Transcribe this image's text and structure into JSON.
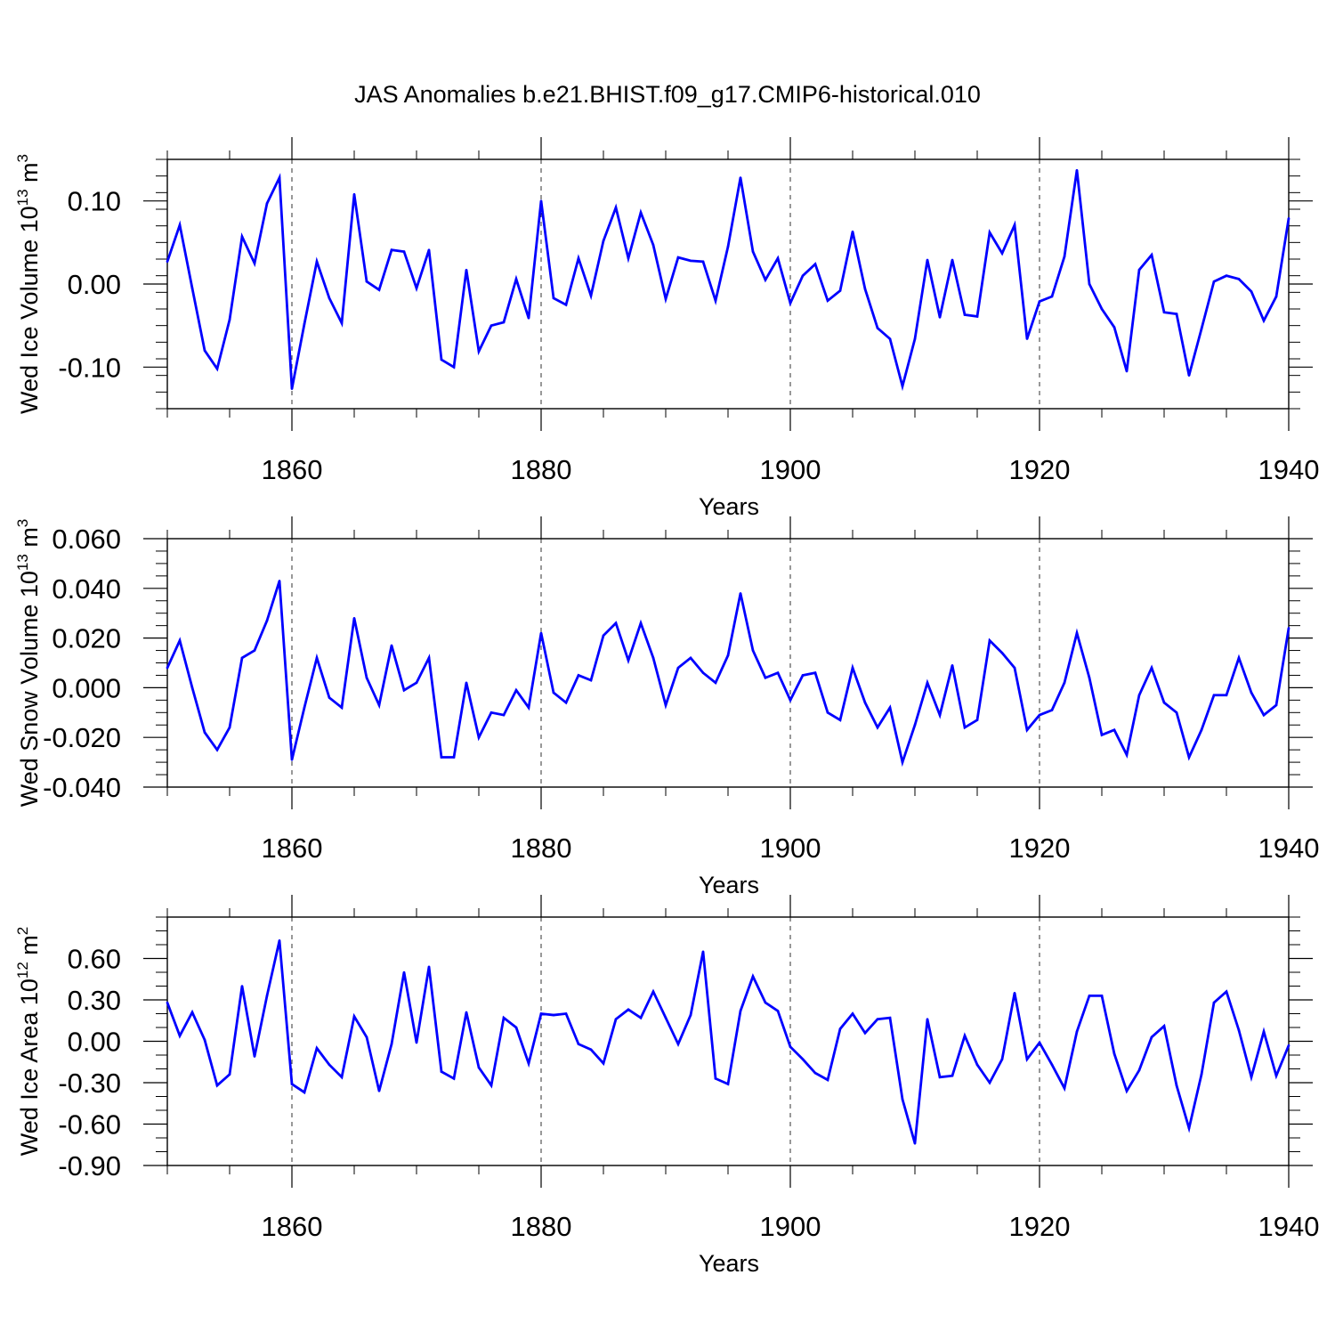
{
  "title": "JAS Anomalies b.e21.BHIST.f09_g17.CMIP6-historical.010",
  "line_color": "#0000ff",
  "chart_data": [
    {
      "type": "line",
      "ylabel": "Wed Ice Volume 10",
      "ylabel_sup": "13",
      "ylabel_unit": " m",
      "ylabel_unit_sup": "3",
      "xlabel": "Years",
      "xlim": [
        1850,
        1940
      ],
      "ylim": [
        -0.15,
        0.15
      ],
      "x_ticks": [
        1860,
        1880,
        1900,
        1920,
        1940
      ],
      "x_tick_labels": [
        "1860",
        "1880",
        "1900",
        "1920",
        "1940"
      ],
      "y_ticks": [
        -0.1,
        0.0,
        0.1
      ],
      "y_tick_labels": [
        "-0.10",
        "0.00",
        "0.10"
      ],
      "y_minor_step": 0.02,
      "x_start": 1850,
      "values": [
        0.027,
        0.071,
        -0.005,
        -0.08,
        -0.102,
        -0.043,
        0.057,
        0.025,
        0.097,
        0.128,
        -0.126,
        -0.048,
        0.027,
        -0.017,
        -0.047,
        0.108,
        0.003,
        -0.007,
        0.041,
        0.039,
        -0.005,
        0.041,
        -0.091,
        -0.1,
        0.017,
        -0.081,
        -0.05,
        -0.046,
        0.006,
        -0.041,
        0.1,
        -0.017,
        -0.025,
        0.031,
        -0.014,
        0.052,
        0.092,
        0.031,
        0.086,
        0.047,
        -0.018,
        0.032,
        0.028,
        0.027,
        -0.02,
        0.045,
        0.128,
        0.039,
        0.005,
        0.031,
        -0.023,
        0.01,
        0.024,
        -0.02,
        -0.008,
        0.063,
        -0.006,
        -0.053,
        -0.066,
        -0.123,
        -0.066,
        0.029,
        -0.04,
        0.029,
        -0.037,
        -0.039,
        0.062,
        0.037,
        0.071,
        -0.066,
        -0.021,
        -0.015,
        0.033,
        0.137,
        0.0,
        -0.03,
        -0.052,
        -0.105,
        0.017,
        0.035,
        -0.034,
        -0.036,
        -0.11,
        -0.054,
        0.003,
        0.01,
        0.006,
        -0.009,
        -0.044,
        -0.015,
        0.079
      ]
    },
    {
      "type": "line",
      "ylabel": "Wed Snow Volume 10",
      "ylabel_sup": "13",
      "ylabel_unit": " m",
      "ylabel_unit_sup": "3",
      "xlabel": "Years",
      "xlim": [
        1850,
        1940
      ],
      "ylim": [
        -0.04,
        0.06
      ],
      "x_ticks": [
        1860,
        1880,
        1900,
        1920,
        1940
      ],
      "x_tick_labels": [
        "1860",
        "1880",
        "1900",
        "1920",
        "1940"
      ],
      "y_ticks": [
        -0.04,
        -0.02,
        0.0,
        0.02,
        0.04,
        0.06
      ],
      "y_tick_labels": [
        "-0.040",
        "-0.020",
        "0.000",
        "0.020",
        "0.040",
        "0.060"
      ],
      "y_minor_step": 0.005,
      "x_start": 1850,
      "values": [
        0.008,
        0.019,
        0.0,
        -0.018,
        -0.025,
        -0.016,
        0.012,
        0.015,
        0.027,
        0.043,
        -0.029,
        -0.008,
        0.012,
        -0.004,
        -0.008,
        0.028,
        0.004,
        -0.007,
        0.017,
        -0.001,
        0.002,
        0.012,
        -0.028,
        -0.028,
        0.002,
        -0.02,
        -0.01,
        -0.011,
        -0.001,
        -0.008,
        0.022,
        -0.002,
        -0.006,
        0.005,
        0.003,
        0.021,
        0.026,
        0.011,
        0.026,
        0.012,
        -0.007,
        0.008,
        0.012,
        0.006,
        0.002,
        0.013,
        0.038,
        0.015,
        0.004,
        0.006,
        -0.005,
        0.005,
        0.006,
        -0.01,
        -0.013,
        0.008,
        -0.006,
        -0.016,
        -0.008,
        -0.03,
        -0.015,
        0.002,
        -0.011,
        0.009,
        -0.016,
        -0.013,
        0.019,
        0.014,
        0.008,
        -0.017,
        -0.011,
        -0.009,
        0.002,
        0.022,
        0.004,
        -0.019,
        -0.017,
        -0.027,
        -0.003,
        0.008,
        -0.006,
        -0.01,
        -0.028,
        -0.017,
        -0.003,
        -0.003,
        0.012,
        -0.002,
        -0.011,
        -0.007,
        0.024
      ]
    },
    {
      "type": "line",
      "ylabel": "Wed Ice Area 10",
      "ylabel_sup": "12",
      "ylabel_unit": " m",
      "ylabel_unit_sup": "2",
      "xlabel": "Years",
      "xlim": [
        1850,
        1940
      ],
      "ylim": [
        -0.9,
        0.9
      ],
      "x_ticks": [
        1860,
        1880,
        1900,
        1920,
        1940
      ],
      "x_tick_labels": [
        "1860",
        "1880",
        "1900",
        "1920",
        "1940"
      ],
      "y_ticks": [
        -0.9,
        -0.6,
        -0.3,
        0.0,
        0.3,
        0.6
      ],
      "y_tick_labels": [
        "-0.90",
        "-0.60",
        "-0.30",
        "0.00",
        "0.30",
        "0.60"
      ],
      "y_minor_step": 0.1,
      "x_start": 1850,
      "values": [
        0.28,
        0.04,
        0.21,
        0.01,
        -0.32,
        -0.24,
        0.4,
        -0.11,
        0.33,
        0.73,
        -0.31,
        -0.37,
        -0.05,
        -0.17,
        -0.26,
        0.18,
        0.03,
        -0.36,
        -0.02,
        0.5,
        -0.01,
        0.54,
        -0.22,
        -0.27,
        0.21,
        -0.19,
        -0.32,
        0.17,
        0.1,
        -0.16,
        0.2,
        0.19,
        0.2,
        -0.02,
        -0.06,
        -0.16,
        0.16,
        0.23,
        0.17,
        0.36,
        0.17,
        -0.02,
        0.19,
        0.65,
        -0.27,
        -0.31,
        0.22,
        0.47,
        0.28,
        0.22,
        -0.04,
        -0.13,
        -0.23,
        -0.28,
        0.09,
        0.2,
        0.06,
        0.16,
        0.17,
        -0.42,
        -0.74,
        0.16,
        -0.26,
        -0.25,
        0.04,
        -0.17,
        -0.3,
        -0.13,
        0.35,
        -0.13,
        -0.01,
        -0.17,
        -0.34,
        0.07,
        0.33,
        0.33,
        -0.09,
        -0.36,
        -0.21,
        0.03,
        0.11,
        -0.32,
        -0.63,
        -0.24,
        0.28,
        0.36,
        0.08,
        -0.26,
        0.07,
        -0.25,
        -0.03
      ]
    }
  ]
}
